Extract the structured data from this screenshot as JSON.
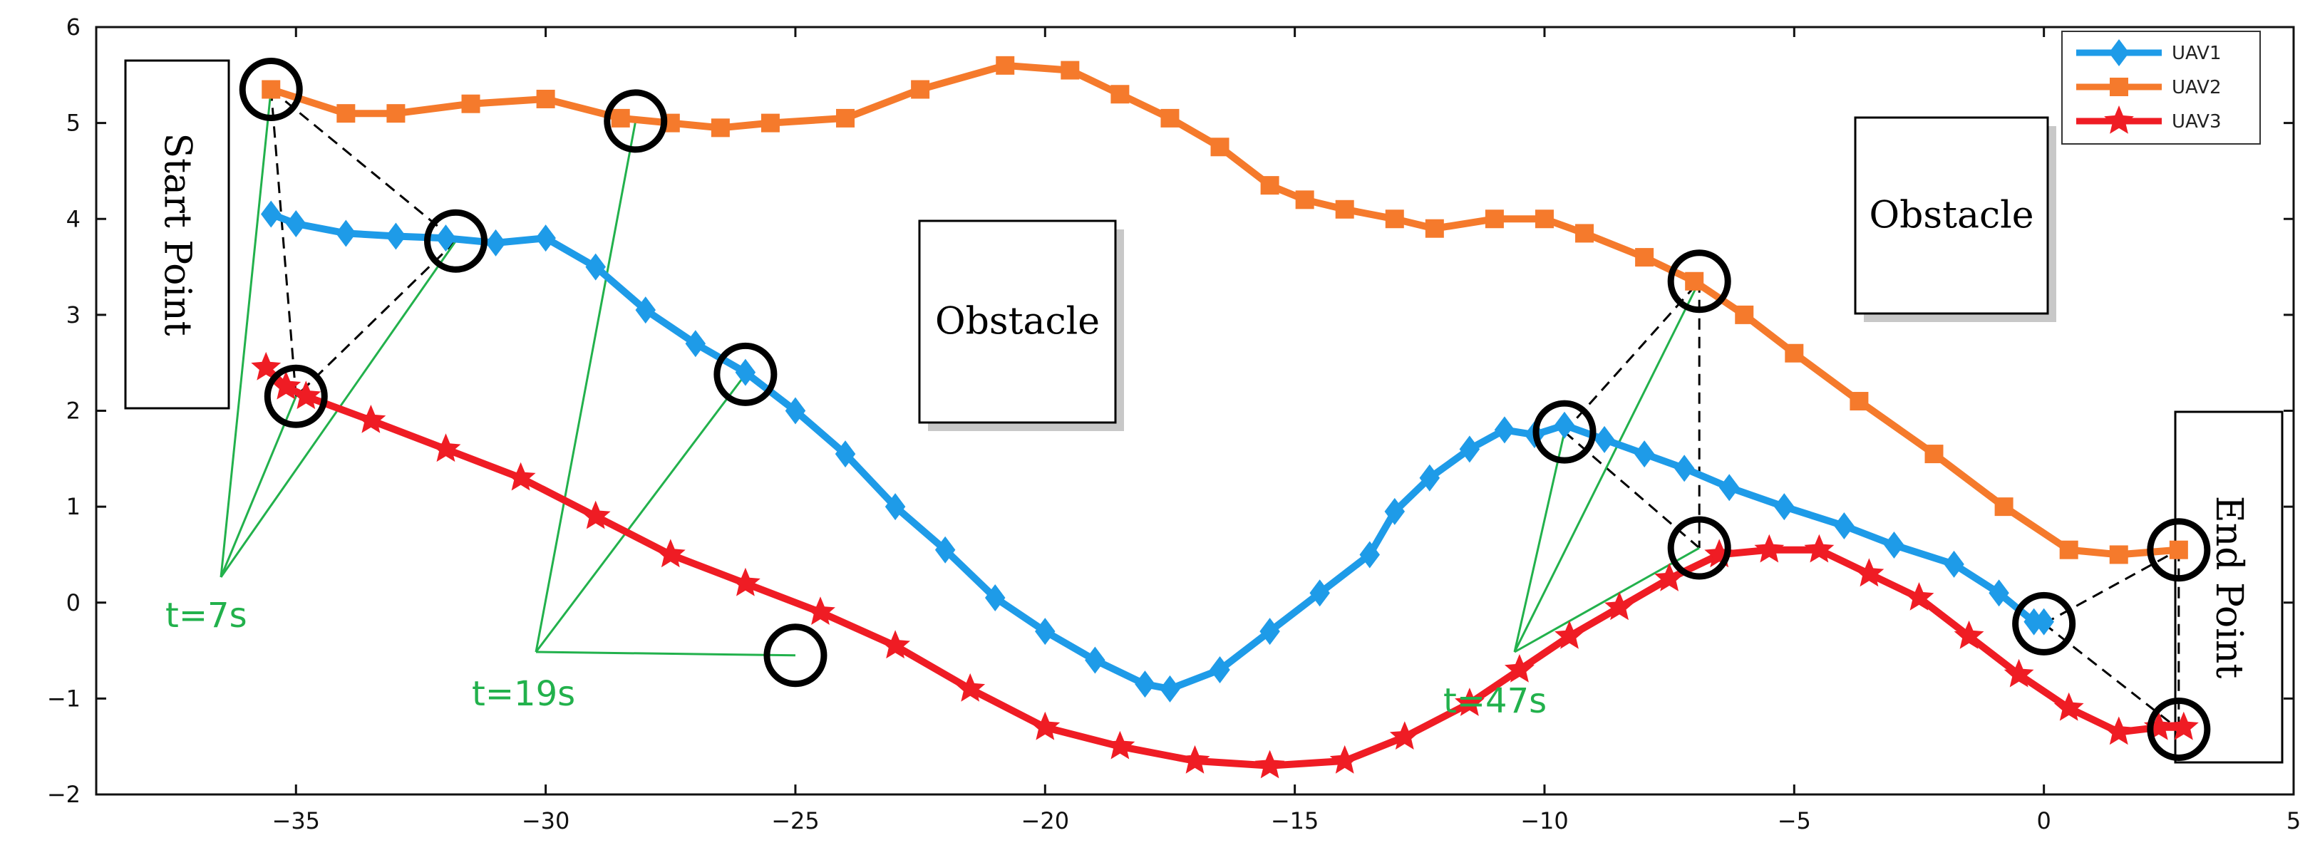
{
  "chart_data": {
    "type": "line",
    "title": "",
    "xlabel": "",
    "ylabel": "",
    "xlim": [
      -39,
      5
    ],
    "ylim": [
      -2,
      6
    ],
    "xticks": [
      -35,
      -30,
      -25,
      -20,
      -15,
      -10,
      -5,
      0,
      5
    ],
    "yticks": [
      -2,
      -1,
      0,
      1,
      2,
      3,
      4,
      5,
      6
    ],
    "grid": false,
    "legend_position": "top-right",
    "series": [
      {
        "name": "UAV1",
        "color": "#1e9be8",
        "marker": "diamond",
        "x": [
          -35.5,
          -35,
          -34,
          -33,
          -32,
          -31,
          -30,
          -29,
          -28,
          -27,
          -26,
          -25,
          -24,
          -23,
          -22,
          -21,
          -20,
          -19,
          -18,
          -17.5,
          -16.5,
          -15.5,
          -14.5,
          -13.5,
          -13,
          -12.3,
          -11.5,
          -10.8,
          -10.2,
          -9.6,
          -8.8,
          -8,
          -7.2,
          -6.3,
          -5.2,
          -4,
          -3,
          -1.8,
          -0.9,
          -0.2,
          0
        ],
        "y": [
          4.05,
          3.95,
          3.85,
          3.82,
          3.8,
          3.75,
          3.8,
          3.5,
          3.05,
          2.7,
          2.4,
          2.0,
          1.55,
          1.0,
          0.55,
          0.05,
          -0.3,
          -0.6,
          -0.85,
          -0.9,
          -0.7,
          -0.3,
          0.1,
          0.5,
          0.95,
          1.3,
          1.6,
          1.8,
          1.75,
          1.85,
          1.7,
          1.55,
          1.4,
          1.2,
          1.0,
          0.8,
          0.6,
          0.4,
          0.1,
          -0.2,
          -0.2
        ]
      },
      {
        "name": "UAV2",
        "color": "#f57a2c",
        "marker": "square",
        "x": [
          -35.5,
          -34,
          -33,
          -31.5,
          -30,
          -28.5,
          -27.5,
          -26.5,
          -25.5,
          -24,
          -22.5,
          -20.8,
          -19.5,
          -18.5,
          -17.5,
          -16.5,
          -15.5,
          -14.8,
          -14,
          -13,
          -12.2,
          -11,
          -10,
          -9.2,
          -8,
          -7,
          -6,
          -5,
          -3.7,
          -2.2,
          -0.8,
          0.5,
          1.5,
          2.7
        ],
        "y": [
          5.35,
          5.1,
          5.1,
          5.2,
          5.25,
          5.05,
          5.0,
          4.95,
          5.0,
          5.05,
          5.35,
          5.6,
          5.55,
          5.3,
          5.05,
          4.75,
          4.35,
          4.2,
          4.1,
          4.0,
          3.9,
          4.0,
          4.0,
          3.85,
          3.6,
          3.35,
          3.0,
          2.6,
          2.1,
          1.55,
          1.0,
          0.55,
          0.5,
          0.55
        ]
      },
      {
        "name": "UAV3",
        "color": "#ef1c24",
        "marker": "star",
        "x": [
          -35.6,
          -35.2,
          -34.8,
          -33.5,
          -32,
          -30.5,
          -29,
          -27.5,
          -26,
          -24.5,
          -23,
          -21.5,
          -20,
          -18.5,
          -17,
          -15.5,
          -14,
          -12.8,
          -11.5,
          -10.5,
          -9.5,
          -8.5,
          -7.5,
          -6.5,
          -5.5,
          -4.5,
          -3.5,
          -2.5,
          -1.5,
          -0.5,
          0.5,
          1.5,
          2.3,
          2.8
        ],
        "y": [
          2.45,
          2.25,
          2.15,
          1.9,
          1.6,
          1.3,
          0.9,
          0.5,
          0.2,
          -0.1,
          -0.45,
          -0.9,
          -1.3,
          -1.5,
          -1.65,
          -1.7,
          -1.65,
          -1.4,
          -1.05,
          -0.7,
          -0.35,
          -0.05,
          0.25,
          0.5,
          0.55,
          0.55,
          0.3,
          0.05,
          -0.35,
          -0.75,
          -1.1,
          -1.35,
          -1.3,
          -1.3
        ]
      }
    ],
    "annotations": {
      "boxes": [
        {
          "name": "start",
          "text": "Start Point",
          "rotation": "90"
        },
        {
          "name": "obstacle-1",
          "text": "Obstacle"
        },
        {
          "name": "obstacle-2",
          "text": "Obstacle"
        },
        {
          "name": "end",
          "text": "End Point",
          "rotation": "90"
        }
      ],
      "time_labels": [
        "t=7s",
        "t=19s",
        "t=47s"
      ],
      "circles": [
        {
          "group": "t=7s",
          "x": -35.5,
          "y": 5.35
        },
        {
          "group": "t=7s",
          "x": -31.8,
          "y": 3.77
        },
        {
          "group": "t=7s",
          "x": -35.0,
          "y": 2.15
        },
        {
          "group": "t=19s",
          "x": -28.2,
          "y": 5.02
        },
        {
          "group": "t=19s",
          "x": -26.0,
          "y": 2.38
        },
        {
          "group": "t=19s",
          "x": -25.0,
          "y": -0.55
        },
        {
          "group": "t=47s",
          "x": -9.6,
          "y": 1.78
        },
        {
          "group": "t=47s",
          "x": -6.9,
          "y": 3.35
        },
        {
          "group": "t=47s",
          "x": -6.9,
          "y": 0.57
        },
        {
          "group": "end",
          "x": 0.0,
          "y": -0.22
        },
        {
          "group": "end",
          "x": 2.7,
          "y": 0.55
        },
        {
          "group": "end",
          "x": 2.7,
          "y": -1.32
        }
      ]
    }
  }
}
